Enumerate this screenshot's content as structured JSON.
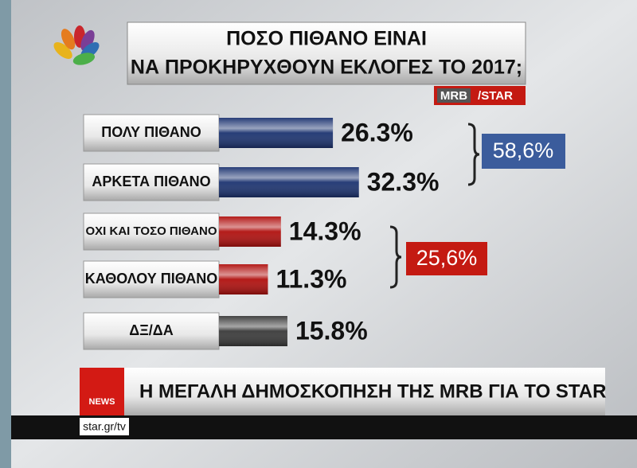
{
  "chart_data": {
    "type": "bar",
    "orientation": "horizontal",
    "title": [
      "ΠΟΣΟ ΠΙΘΑΝΟ ΕΙΝΑΙ",
      "ΝΑ ΠΡΟΚΗΡΥΧΘΟΥΝ ΕΚΛΟΓΕΣ ΤΟ 2017;"
    ],
    "source": [
      "MRB",
      "/STAR"
    ],
    "categories": [
      "ΠΟΛΥ ΠΙΘΑΝΟ",
      "ΑΡΚΕΤΑ ΠΙΘΑΝΟ",
      "ΟΧΙ ΚΑΙ ΤΟΣΟ ΠΙΘΑΝΟ",
      "ΚΑΘΟΛΟΥ ΠΙΘΑΝΟ",
      "ΔΞ/ΔΑ"
    ],
    "values": [
      26.3,
      32.3,
      14.3,
      11.3,
      15.8
    ],
    "value_labels": [
      "26.3%",
      "32.3%",
      "14.3%",
      "11.3%",
      "15.8%"
    ],
    "colors": [
      "#1c3370",
      "#1c3370",
      "#b0100e",
      "#b0100e",
      "#3a3a3a"
    ],
    "annotations": [
      {
        "text": "58,6%",
        "color": "#3b5c9c"
      },
      {
        "text": "25,6%",
        "color": "#c41a12"
      }
    ]
  },
  "footer": {
    "logo": "NEWS",
    "headline": "Η ΜΕΓΑΛΗ ΔΗΜΟΣΚΟΠΗΣΗ ΤΗΣ MRB ΓΙΑ ΤΟ STAR",
    "url": "star.gr/tv"
  }
}
